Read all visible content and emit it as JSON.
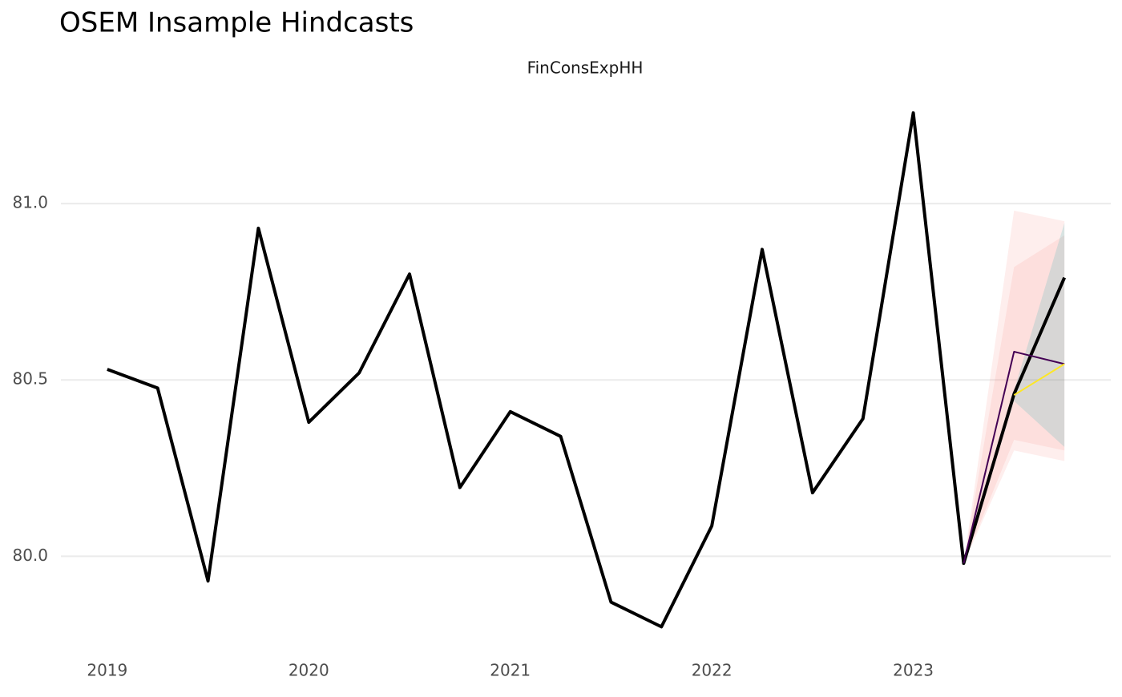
{
  "chart_data": {
    "type": "line",
    "title": "OSEM Insample Hindcasts",
    "subtitle": "FinConsExpHH",
    "xlim": [
      2018.77,
      2023.98
    ],
    "xticks": [
      2019,
      2020,
      2021,
      2022,
      2023
    ],
    "ylim": [
      79.76,
      81.3
    ],
    "yticks": [
      {
        "value": 80,
        "label": "80.0"
      },
      {
        "value": 80.5,
        "label": "80.5"
      },
      {
        "value": 81,
        "label": "81.0"
      }
    ],
    "grid": true,
    "bands": [
      {
        "color": "#f8766d",
        "opacity": 0.12,
        "x": [
          2023.25,
          2023.5,
          2023.75
        ],
        "lower": [
          79.98,
          80.3,
          80.27
        ],
        "upper": [
          79.98,
          80.98,
          80.95
        ]
      },
      {
        "color": "#f8766d",
        "opacity": 0.12,
        "x": [
          2023.25,
          2023.5,
          2023.75
        ],
        "lower": [
          79.98,
          80.33,
          80.3
        ],
        "upper": [
          79.98,
          80.82,
          80.91
        ]
      },
      {
        "color": "#00a9a5",
        "opacity": 0.15,
        "x": [
          2023.25,
          2023.5,
          2023.75
        ],
        "lower": [
          79.98,
          80.44,
          80.31
        ],
        "upper": [
          79.98,
          80.47,
          80.945
        ]
      }
    ],
    "series": [
      {
        "color": "#000000",
        "width": 4,
        "x": [
          2019,
          2019.25,
          2019.5,
          2019.75,
          2020,
          2020.25,
          2020.5,
          2020.75,
          2021,
          2021.25,
          2021.5,
          2021.75,
          2022,
          2022.25,
          2022.5,
          2022.75,
          2023,
          2023.25,
          2023.5,
          2023.75
        ],
        "values": [
          80.53,
          80.477,
          79.93,
          80.93,
          80.38,
          80.52,
          80.8,
          80.195,
          80.41,
          80.34,
          79.87,
          79.8,
          80.086,
          80.87,
          80.18,
          80.39,
          81.257,
          79.98,
          80.46,
          80.79
        ]
      },
      {
        "color": "#440154",
        "width": 2,
        "x": [
          2023.25,
          2023.5,
          2023.75
        ],
        "values": [
          79.98,
          80.58,
          80.545
        ]
      },
      {
        "color": "#fde725",
        "width": 2,
        "x": [
          2023.5,
          2023.75
        ],
        "values": [
          80.457,
          80.545
        ]
      }
    ]
  }
}
